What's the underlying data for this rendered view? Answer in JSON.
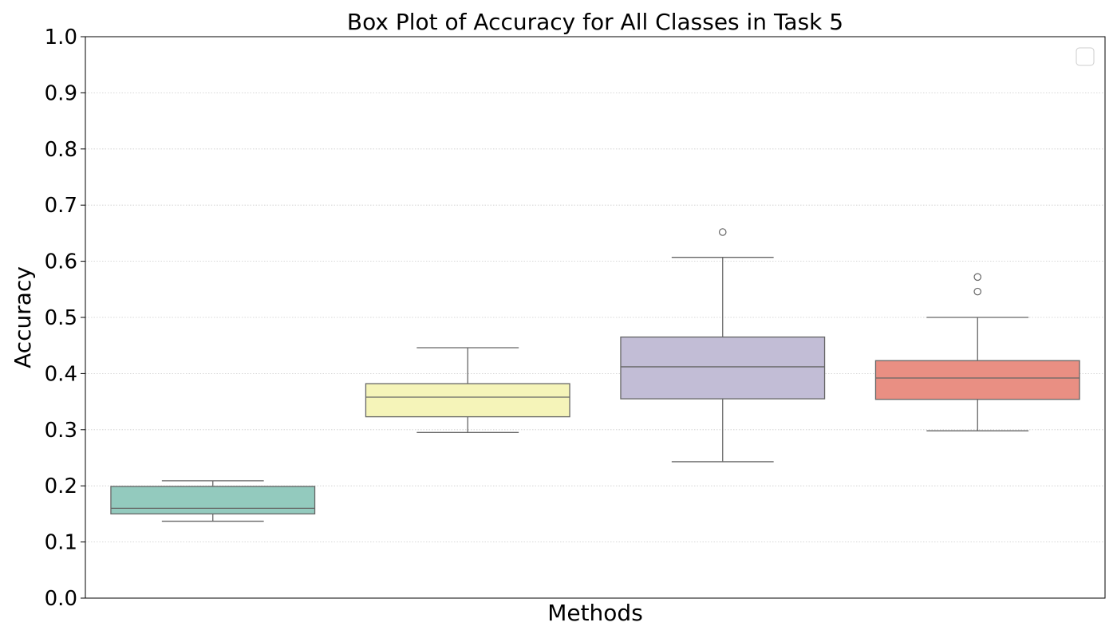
{
  "chart_data": {
    "type": "box",
    "title": "Box Plot of Accuracy for All Classes in Task 5",
    "xlabel": "Methods",
    "ylabel": "Accuracy",
    "ylim": [
      0.0,
      1.0
    ],
    "yticks": [
      "0.0",
      "0.1",
      "0.2",
      "0.3",
      "0.4",
      "0.5",
      "0.6",
      "0.7",
      "0.8",
      "0.9",
      "1.0"
    ],
    "grid": "horizontal-dotted",
    "legend": "top-right (empty)",
    "series": [
      {
        "whisker_low": 0.137,
        "q1": 0.15,
        "median": 0.16,
        "q3": 0.199,
        "whisker_high": 0.209,
        "outliers": [],
        "color": "#93CABE"
      },
      {
        "whisker_low": 0.295,
        "q1": 0.323,
        "median": 0.358,
        "q3": 0.382,
        "whisker_high": 0.446,
        "outliers": [],
        "color": "#F5F4B9"
      },
      {
        "whisker_low": 0.243,
        "q1": 0.355,
        "median": 0.412,
        "q3": 0.465,
        "whisker_high": 0.607,
        "outliers": [
          0.652
        ],
        "color": "#C2BDD6"
      },
      {
        "whisker_low": 0.298,
        "q1": 0.354,
        "median": 0.392,
        "q3": 0.423,
        "whisker_high": 0.5,
        "outliers": [
          0.572,
          0.546
        ],
        "color": "#E98F83"
      }
    ]
  }
}
